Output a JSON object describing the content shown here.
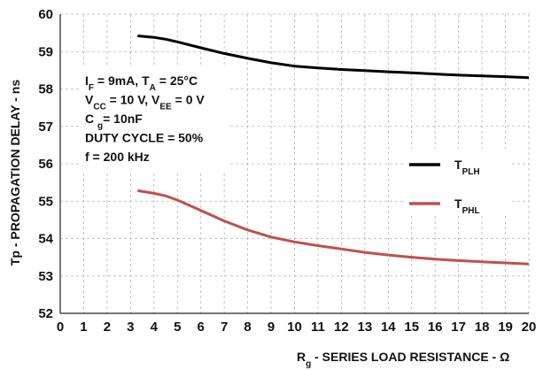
{
  "chart_data": {
    "type": "line",
    "xlabel": "Rg - SERIES LOAD RESISTANCE - Ω",
    "xlabel_main": "R",
    "xlabel_sub": "g",
    "xlabel_rest": " - SERIES LOAD RESISTANCE  - Ω",
    "ylabel": "Tp - PROPAGATION DELAY - ns",
    "xlim": [
      0,
      20
    ],
    "ylim": [
      52,
      60
    ],
    "xticks": [
      "0",
      "1",
      "2",
      "3",
      "4",
      "5",
      "6",
      "7",
      "8",
      "9",
      "10",
      "11",
      "12",
      "13",
      "14",
      "15",
      "16",
      "17",
      "18",
      "19",
      "20"
    ],
    "yticks": [
      "52",
      "53",
      "54",
      "55",
      "56",
      "57",
      "58",
      "59",
      "60"
    ],
    "grid": "dashed",
    "legend_position": "right",
    "conditions": [
      [
        {
          "t": "I"
        },
        {
          "t": "F",
          "sub": true
        },
        {
          "t": " = 9mA, T"
        },
        {
          "t": "A",
          "sub": true
        },
        {
          "t": " = 25°C"
        }
      ],
      [
        {
          "t": "V"
        },
        {
          "t": "CC",
          "sub": true
        },
        {
          "t": " = 10 V, V"
        },
        {
          "t": "EE",
          "sub": true
        },
        {
          "t": " = 0 V"
        }
      ],
      [
        {
          "t": "C "
        },
        {
          "t": "g",
          "sub": true
        },
        {
          "t": "= 10nF"
        }
      ],
      [
        {
          "t": "DUTY CYCLE = 50%"
        }
      ],
      [
        {
          "t": "f = 200 kHz"
        }
      ]
    ],
    "series": [
      {
        "name": "TPLH",
        "label_main": "T",
        "label_sub": "PLH",
        "color": "#000000",
        "x": [
          3.3,
          4,
          4.5,
          5,
          6,
          7,
          8,
          9,
          10,
          11,
          12,
          13,
          14,
          15,
          16,
          17,
          18,
          19,
          20
        ],
        "y": [
          59.42,
          59.38,
          59.33,
          59.26,
          59.1,
          58.95,
          58.82,
          58.7,
          58.61,
          58.56,
          58.52,
          58.49,
          58.46,
          58.43,
          58.4,
          58.37,
          58.35,
          58.33,
          58.3
        ]
      },
      {
        "name": "TPHL",
        "label_main": "T",
        "label_sub": "PHL",
        "color": "#c0504d",
        "x": [
          3.3,
          4,
          4.5,
          5,
          6,
          7,
          8,
          9,
          10,
          11,
          12,
          13,
          14,
          15,
          16,
          17,
          18,
          19,
          20
        ],
        "y": [
          55.28,
          55.21,
          55.14,
          55.03,
          54.75,
          54.47,
          54.23,
          54.04,
          53.91,
          53.81,
          53.72,
          53.63,
          53.56,
          53.5,
          53.45,
          53.41,
          53.38,
          53.35,
          53.32
        ]
      }
    ]
  }
}
